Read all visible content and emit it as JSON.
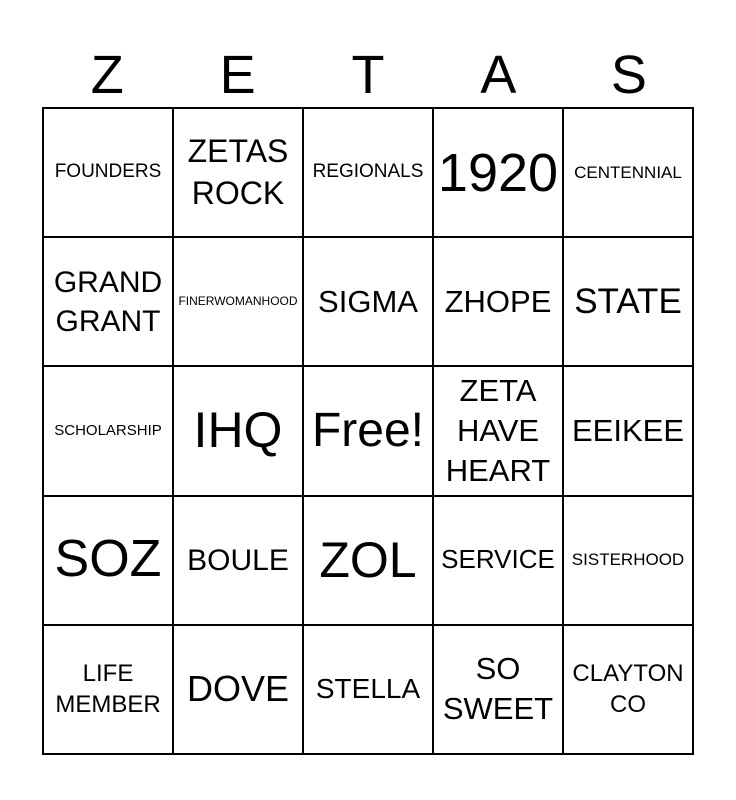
{
  "title": "ZETAS",
  "header": {
    "letters": [
      "Z",
      "E",
      "T",
      "A",
      "S"
    ]
  },
  "colors": {
    "text": "#000000",
    "border": "#000000",
    "background": "#ffffff"
  },
  "grid": {
    "rows": 5,
    "cols": 5,
    "free_cell_label": "Free!",
    "cells": [
      "FOUNDERS",
      "ZETAS ROCK",
      "REGIONALS",
      "1920",
      "CENTENNIAL",
      "GRAND GRANT",
      "FINERWOMANHOOD",
      "SIGMA",
      "ZHOPE",
      "STATE",
      "SCHOLARSHIP",
      "IHQ",
      "Free!",
      "ZETA HAVE HEART",
      "EEIKEE",
      "SOZ",
      "BOULE",
      "ZOL",
      "SERVICE",
      "SISTERHOOD",
      "LIFE MEMBER",
      "DOVE",
      "STELLA",
      "SO SWEET",
      "CLAYTON CO"
    ]
  }
}
